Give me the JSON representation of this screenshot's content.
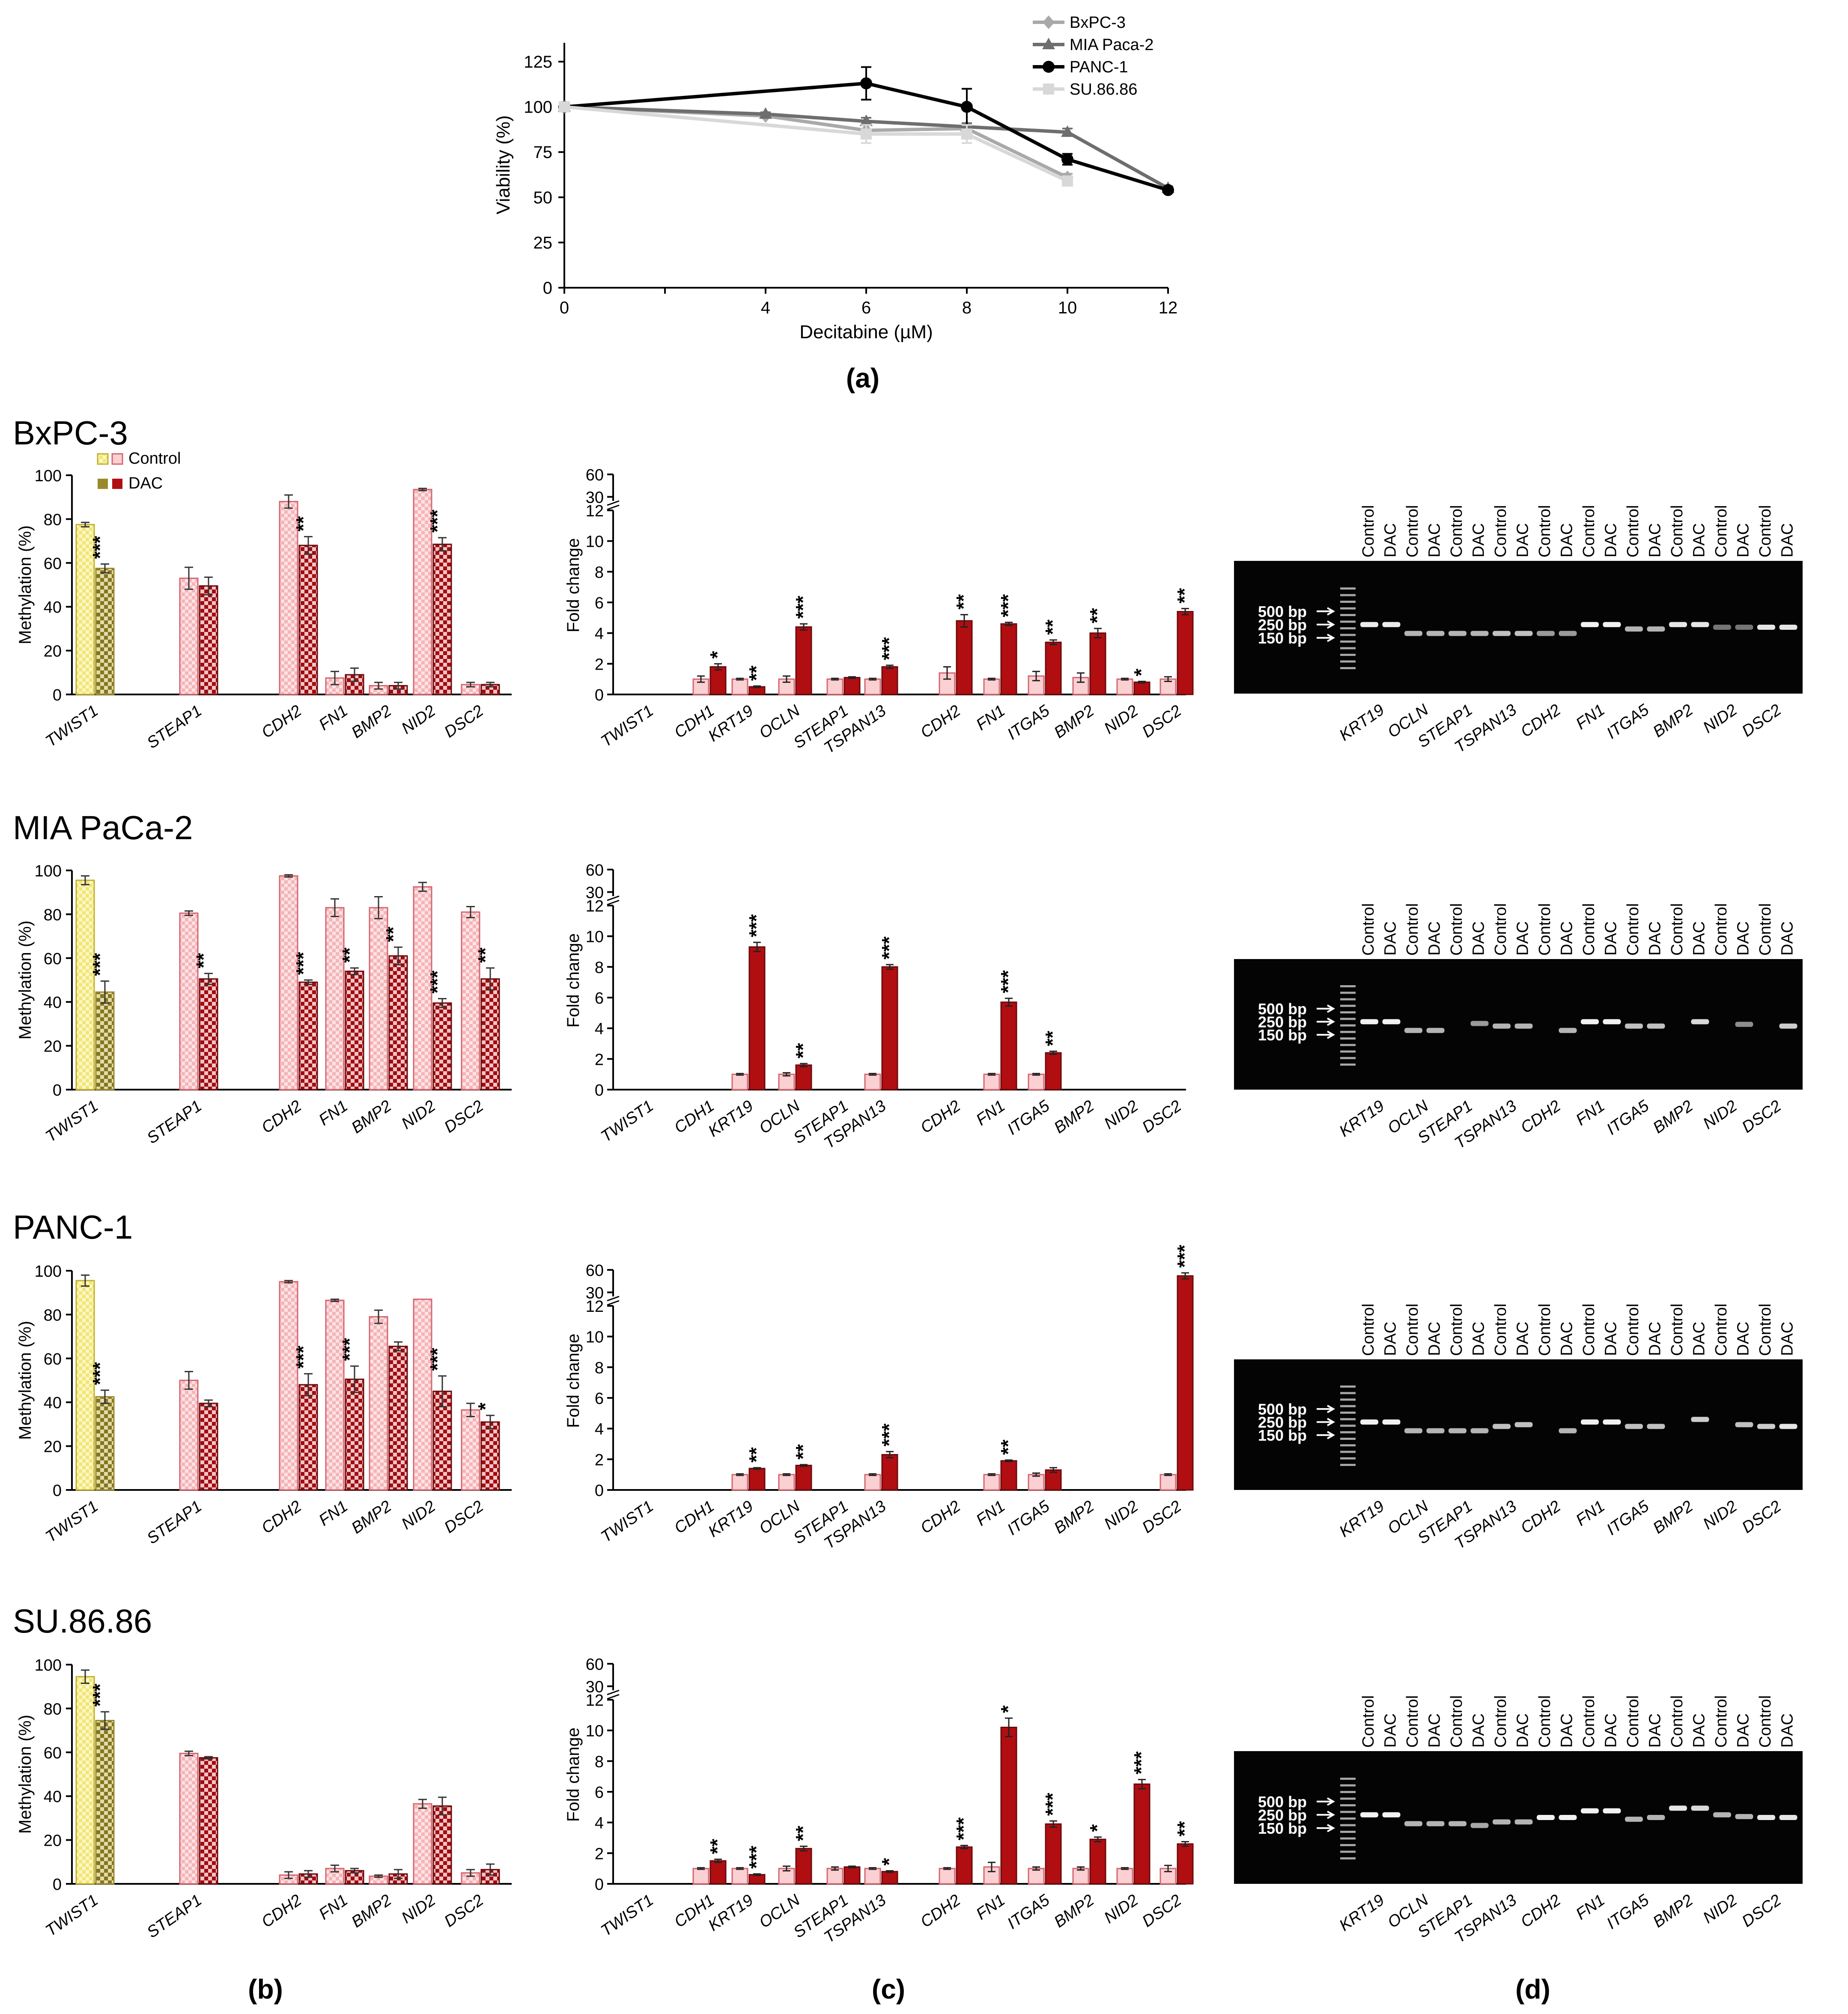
{
  "panel_labels": {
    "a": "(a)",
    "b": "(b)",
    "c": "(c)",
    "d": "(d)"
  },
  "colors": {
    "twist_control": "#fbf2a0",
    "twist_control_edge": "#c2b02c",
    "twist_dac": "#9a8a2c",
    "pink_control": "#fbd0d2",
    "pink_edge": "#d56670",
    "dac_red": "#b10e12",
    "dac_dark": "#6a0a0c",
    "line_bxpc3": "#a9a9a9",
    "line_mia": "#6e6e6e",
    "line_panc1": "#000000",
    "line_su": "#d8d8d8"
  },
  "legend_b": {
    "control": "Control",
    "dac": "DAC"
  },
  "gel": {
    "lane_labels": [
      "Control",
      "DAC",
      "Control",
      "DAC",
      "Control",
      "DAC",
      "Control",
      "DAC",
      "Control",
      "DAC",
      "Control",
      "DAC",
      "Control",
      "DAC",
      "Control",
      "DAC",
      "Control",
      "DAC",
      "Control",
      "DAC"
    ],
    "ladder_labels": [
      "500 bp",
      "250 bp",
      "150 bp"
    ],
    "gene_labels": [
      "KRT19",
      "OCLN",
      "STEAP1",
      "TSPAN13",
      "CDH2",
      "FN1",
      "ITGA5",
      "BMP2",
      "NID2",
      "DSC2"
    ]
  },
  "chart_data": [
    {
      "id": "a",
      "type": "line",
      "xlabel": "Decitabine (µM)",
      "ylabel": "Viability (%)",
      "xlim": [
        0,
        12
      ],
      "ylim": [
        0,
        125
      ],
      "xticks": [
        0,
        2,
        4,
        6,
        8,
        10,
        12
      ],
      "xtick_labels": [
        "0",
        "",
        "4",
        "6",
        "8",
        "10",
        "12"
      ],
      "yticks": [
        0,
        25,
        50,
        75,
        100,
        125
      ],
      "series": [
        {
          "name": "BxPC-3",
          "marker": "diamond",
          "x": [
            0,
            4,
            6,
            8,
            10
          ],
          "y": [
            100,
            95,
            87,
            88,
            61
          ],
          "err": [
            0,
            1,
            3,
            3,
            2
          ]
        },
        {
          "name": "MIA Paca-2",
          "marker": "triangle",
          "x": [
            0,
            4,
            6,
            8,
            10,
            12
          ],
          "y": [
            100,
            96,
            92,
            89,
            86,
            55
          ],
          "err": [
            0,
            1,
            2,
            2,
            2,
            1
          ]
        },
        {
          "name": "PANC-1",
          "marker": "circle",
          "x": [
            0,
            6,
            8,
            10,
            12
          ],
          "y": [
            100,
            113,
            100,
            71,
            54
          ],
          "err": [
            0,
            9,
            10,
            3,
            1
          ]
        },
        {
          "name": "SU.86.86",
          "marker": "square",
          "x": [
            0,
            6,
            8,
            10
          ],
          "y": [
            100,
            85,
            85,
            59
          ],
          "err": [
            0,
            5,
            5,
            2
          ]
        }
      ]
    },
    {
      "id": "b",
      "type": "bar",
      "ylabel": "Methylation (%)",
      "ylim": [
        0,
        100
      ],
      "yticks": [
        0,
        20,
        40,
        60,
        80,
        100
      ],
      "genes": [
        "TWIST1",
        "STEAP1",
        "CDH2",
        "FN1",
        "BMP2",
        "NID2",
        "DSC2"
      ],
      "cell_lines": [
        {
          "name": "BxPC-3",
          "control": [
            77.5,
            53,
            88,
            7.5,
            4,
            93.5,
            4.5
          ],
          "control_err": [
            1,
            5,
            3,
            3,
            1.5,
            0.5,
            1
          ],
          "dac": [
            57.5,
            49.5,
            68,
            9,
            4,
            68.5,
            4.5
          ],
          "dac_err": [
            2,
            4,
            4,
            3,
            1.5,
            3,
            1
          ],
          "sig": [
            "***",
            "",
            "**",
            "",
            "",
            "***",
            ""
          ]
        },
        {
          "name": "MIA PaCa-2",
          "control": [
            95.5,
            80.5,
            97.5,
            83,
            83,
            92.5,
            81
          ],
          "control_err": [
            2,
            1,
            0.5,
            4,
            5,
            2,
            2.5
          ],
          "dac": [
            44.5,
            50.5,
            49,
            54,
            61,
            39.5,
            50.5
          ],
          "dac_err": [
            5,
            2.5,
            1,
            1.5,
            4,
            2,
            5
          ],
          "sig": [
            "***",
            "**",
            "***",
            "**",
            "**",
            "***",
            "**"
          ]
        },
        {
          "name": "PANC-1",
          "control": [
            95.5,
            50,
            95,
            86.5,
            79,
            87,
            36.5
          ],
          "control_err": [
            2.5,
            4,
            0.5,
            0.5,
            3,
            0,
            3
          ],
          "dac": [
            42.5,
            39.5,
            48,
            50.5,
            65.5,
            45,
            31
          ],
          "dac_err": [
            3,
            1.5,
            5,
            6,
            2,
            7,
            3
          ],
          "sig": [
            "***",
            "",
            "***",
            "***",
            "",
            "***",
            "*"
          ]
        },
        {
          "name": "SU.86.86",
          "control": [
            94.5,
            59.5,
            4,
            7,
            3.5,
            36.5,
            5
          ],
          "control_err": [
            3,
            1,
            1.5,
            1.5,
            0.5,
            2,
            1.5
          ],
          "dac": [
            74.5,
            57.5,
            4.5,
            6,
            4.5,
            35.5,
            6.5
          ],
          "dac_err": [
            4,
            0.5,
            1.5,
            1,
            2,
            4,
            2.5
          ],
          "sig": [
            "***",
            "",
            "",
            "",
            "",
            "",
            ""
          ]
        }
      ]
    },
    {
      "id": "c",
      "type": "bar",
      "ylabel": "Fold change",
      "ylim": [
        0,
        12
      ],
      "break_ticks": [
        30,
        60
      ],
      "yticks": [
        0,
        2,
        4,
        6,
        8,
        10,
        12
      ],
      "genes": [
        "TWIST1",
        "CDH1",
        "KRT19",
        "OCLN",
        "STEAP1",
        "TSPAN13",
        "CDH2",
        "FN1",
        "ITGA5",
        "BMP2",
        "NID2",
        "DSC2"
      ],
      "cell_lines": [
        {
          "name": "BxPC-3",
          "control": [
            null,
            1,
            1,
            1,
            1,
            1,
            1.4,
            1,
            1.2,
            1.1,
            1,
            1
          ],
          "control_err": [
            0,
            0.2,
            0.05,
            0.2,
            0.05,
            0.05,
            0.4,
            0.05,
            0.3,
            0.3,
            0.05,
            0.15
          ],
          "dac": [
            null,
            1.8,
            0.5,
            4.4,
            1.1,
            1.8,
            4.8,
            4.6,
            3.4,
            4,
            0.8,
            5.4
          ],
          "dac_err": [
            0,
            0.2,
            0.05,
            0.2,
            0.05,
            0.1,
            0.4,
            0.1,
            0.15,
            0.3,
            0.05,
            0.2
          ],
          "sig": [
            "",
            "*",
            "**",
            "***",
            "",
            "***",
            "**",
            "***",
            "**",
            "**",
            "*",
            "**"
          ]
        },
        {
          "name": "MIA PaCa-2",
          "control": [
            null,
            null,
            1,
            1,
            null,
            1,
            null,
            1,
            1,
            null,
            null,
            null
          ],
          "control_err": [
            0,
            0,
            0.05,
            0.1,
            0,
            0.05,
            0,
            0.05,
            0.05,
            0,
            0,
            0
          ],
          "dac": [
            null,
            null,
            9.3,
            1.6,
            null,
            8,
            null,
            5.7,
            2.4,
            null,
            null,
            null
          ],
          "dac_err": [
            0,
            0,
            0.3,
            0.1,
            0,
            0.15,
            0,
            0.25,
            0.1,
            0,
            0,
            0
          ],
          "sig": [
            "",
            "",
            "***",
            "**",
            "",
            "***",
            "",
            "***",
            "**",
            "",
            "",
            ""
          ]
        },
        {
          "name": "PANC-1",
          "control": [
            null,
            null,
            1,
            1,
            null,
            1,
            null,
            1,
            1,
            null,
            null,
            1
          ],
          "control_err": [
            0,
            0,
            0.05,
            0.05,
            0,
            0.05,
            0,
            0.05,
            0.1,
            0,
            0,
            0.05
          ],
          "dac": [
            null,
            null,
            1.4,
            1.6,
            null,
            2.3,
            null,
            1.9,
            1.3,
            null,
            null,
            52
          ],
          "dac_err": [
            0,
            0,
            0.05,
            0.05,
            0,
            0.2,
            0,
            0.05,
            0.15,
            0,
            0,
            4
          ],
          "sig": [
            "",
            "",
            "**",
            "**",
            "",
            "***",
            "",
            "**",
            "",
            "",
            "",
            "***"
          ]
        },
        {
          "name": "SU.86.86",
          "control": [
            null,
            1,
            1,
            1,
            1,
            1,
            1,
            1.1,
            1,
            1,
            1,
            1
          ],
          "control_err": [
            0,
            0.05,
            0.05,
            0.15,
            0.1,
            0.05,
            0.05,
            0.3,
            0.1,
            0.1,
            0.05,
            0.2
          ],
          "dac": [
            null,
            1.5,
            0.6,
            2.3,
            1.1,
            0.8,
            2.4,
            10.2,
            3.9,
            2.9,
            6.5,
            2.6
          ],
          "dac_err": [
            0,
            0.1,
            0.05,
            0.15,
            0.05,
            0.05,
            0.1,
            0.6,
            0.2,
            0.15,
            0.3,
            0.15
          ],
          "sig": [
            "",
            "**",
            "***",
            "**",
            "",
            "*",
            "***",
            "*",
            "***",
            "*",
            "***",
            "**"
          ]
        }
      ]
    }
  ]
}
